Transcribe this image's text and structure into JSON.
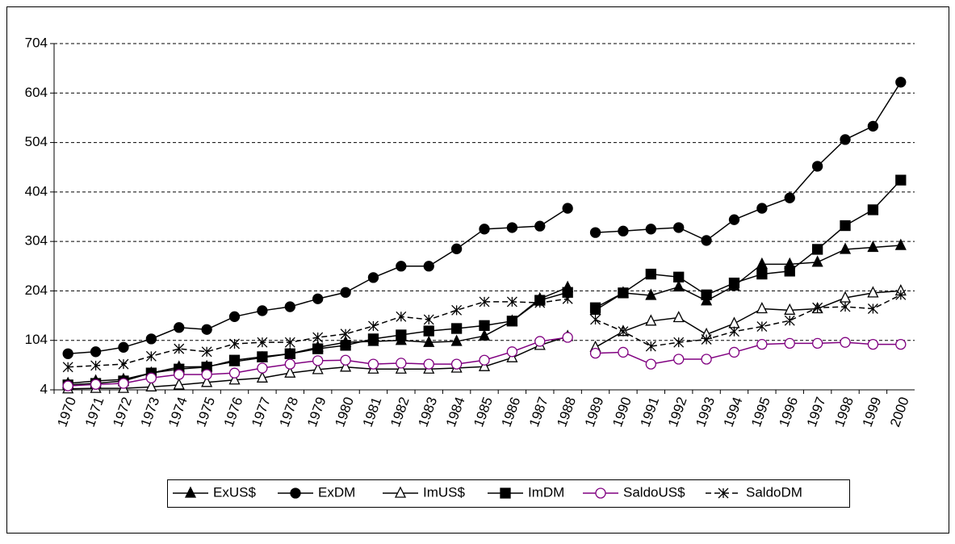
{
  "chart_data": {
    "type": "line",
    "categories": [
      "1970",
      "1971",
      "1972",
      "1973",
      "1974",
      "1975",
      "1976",
      "1977",
      "1978",
      "1979",
      "1980",
      "1981",
      "1982",
      "1983",
      "1984",
      "1985",
      "1986",
      "1987",
      "1988",
      "1989",
      "1990",
      "1991",
      "1992",
      "1993",
      "1994",
      "1995",
      "1996",
      "1997",
      "1998",
      "1999",
      "2000"
    ],
    "ylim": [
      4,
      704
    ],
    "yticks": [
      4,
      104,
      204,
      304,
      404,
      504,
      604,
      704
    ],
    "grid": true,
    "legend": "bottom",
    "series": [
      {
        "name": "ExUS$",
        "color": "#000000",
        "marker": "triangle",
        "dash": "solid",
        "values": [
          17,
          22,
          25,
          38,
          50,
          51,
          61,
          69,
          77,
          90,
          100,
          102,
          104,
          100,
          102,
          113,
          143,
          188,
          211,
          165,
          200,
          195,
          212,
          184,
          214,
          258,
          258,
          262,
          288,
          292,
          296
        ]
      },
      {
        "name": "ExDM",
        "color": "#000000",
        "marker": "circle",
        "dash": "solid",
        "values": [
          77,
          81,
          90,
          107,
          130,
          126,
          152,
          164,
          172,
          188,
          201,
          231,
          254,
          254,
          289,
          329,
          332,
          335,
          371,
          322,
          325,
          329,
          332,
          306,
          348,
          371,
          392,
          456,
          510,
          537,
          626
        ]
      },
      {
        "name": "ImUS$",
        "color": "#000000",
        "marker": "triangle-open",
        "dash": "solid",
        "values": [
          6,
          7,
          7,
          10,
          14,
          19,
          24,
          28,
          38,
          45,
          50,
          46,
          46,
          46,
          48,
          51,
          69,
          94,
          112,
          90,
          122,
          143,
          150,
          116,
          138,
          168,
          165,
          168,
          190,
          200,
          204
        ]
      },
      {
        "name": "ImDM",
        "color": "#000000",
        "marker": "square",
        "dash": "solid",
        "values": [
          14,
          17,
          22,
          38,
          46,
          50,
          64,
          71,
          77,
          87,
          94,
          107,
          115,
          123,
          128,
          134,
          143,
          185,
          201,
          170,
          200,
          238,
          232,
          196,
          220,
          238,
          244,
          288,
          336,
          368,
          428
        ]
      },
      {
        "name": "SaldoUS$",
        "color": "#800080",
        "marker": "circle-open",
        "dash": "solid",
        "values": [
          12,
          15,
          17,
          28,
          35,
          35,
          38,
          48,
          56,
          63,
          64,
          56,
          58,
          56,
          56,
          64,
          81,
          102,
          110,
          78,
          80,
          56,
          66,
          66,
          80,
          96,
          98,
          98,
          100,
          96,
          96
        ]
      },
      {
        "name": "SaldoDM",
        "color": "#000000",
        "marker": "star",
        "dash": "dashed",
        "values": [
          50,
          53,
          56,
          72,
          87,
          81,
          97,
          100,
          100,
          110,
          117,
          133,
          152,
          146,
          165,
          182,
          182,
          180,
          188,
          146,
          122,
          92,
          100,
          106,
          122,
          132,
          144,
          170,
          172,
          168,
          196
        ]
      }
    ]
  }
}
